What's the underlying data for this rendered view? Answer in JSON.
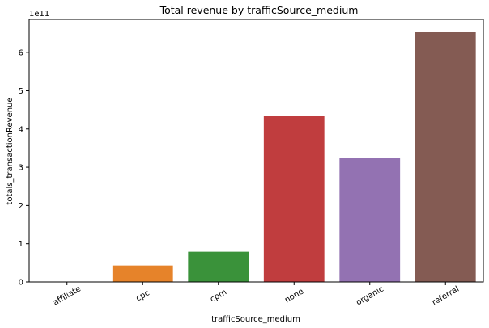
{
  "chart_data": {
    "type": "bar",
    "title": "Total revenue by trafficSource_medium",
    "xlabel": "trafficSource_medium",
    "ylabel": "totals_transactionRevenue",
    "offset_label": "1e11",
    "categories": [
      "affiliate",
      "cpc",
      "cpm",
      "none",
      "organic",
      "referral"
    ],
    "values": [
      0.0,
      0.43,
      0.79,
      4.35,
      3.25,
      6.55
    ],
    "colors": [
      "#1f77b4",
      "#e6832a",
      "#3a923a",
      "#c03d3e",
      "#9372b2",
      "#845b53"
    ],
    "yticks": [
      "0",
      "1",
      "2",
      "3",
      "4",
      "5",
      "6"
    ],
    "ylim": [
      0,
      6.87
    ],
    "grid": false,
    "legend": "none"
  }
}
